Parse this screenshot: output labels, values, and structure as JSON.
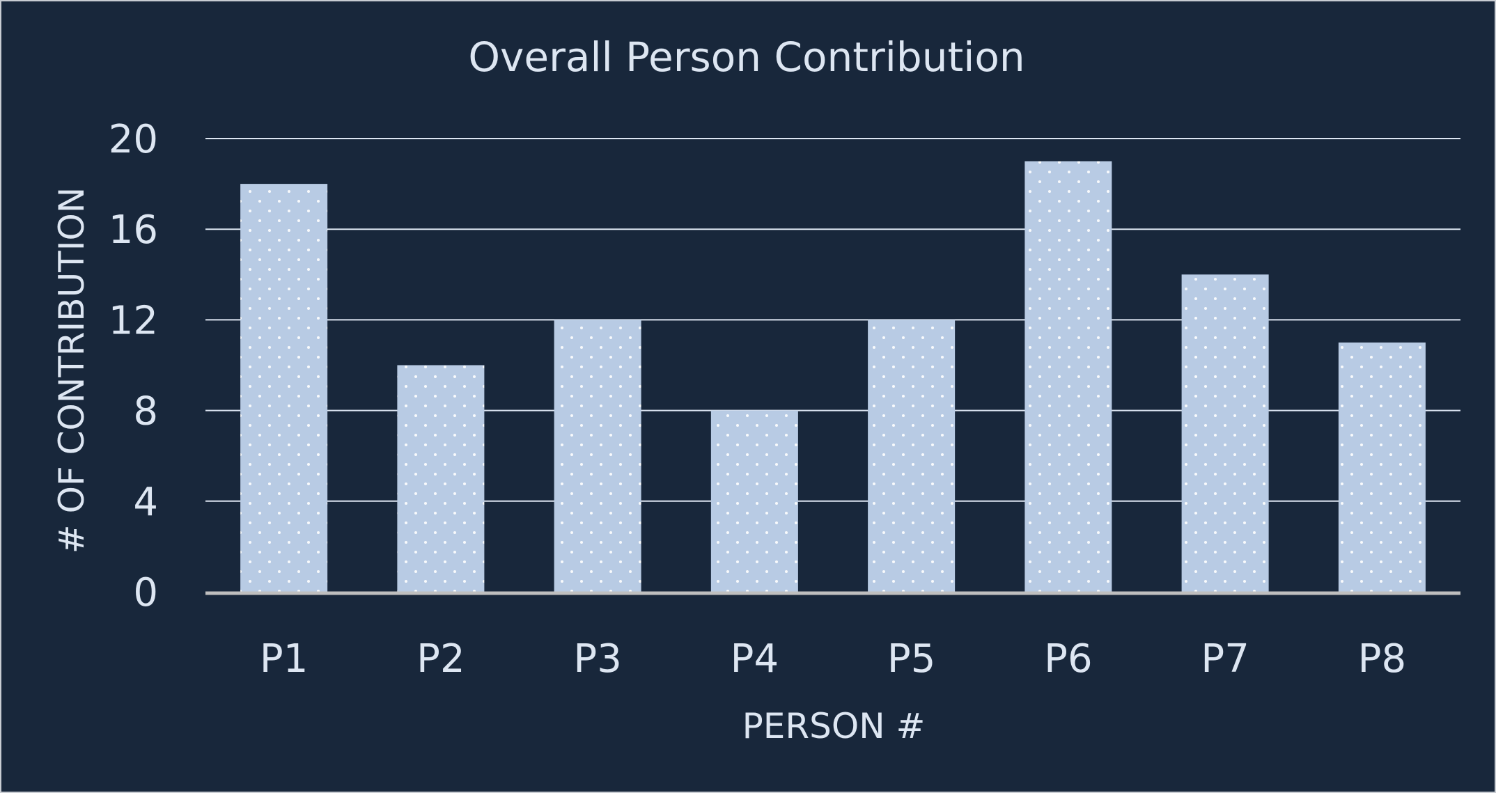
{
  "chart_data": {
    "type": "bar",
    "title": "Overall Person Contribution",
    "xlabel": "PERSON #",
    "ylabel": "# OF CONTRIBUTION",
    "categories": [
      "P1",
      "P2",
      "P3",
      "P4",
      "P5",
      "P6",
      "P7",
      "P8"
    ],
    "values": [
      18,
      10,
      12,
      8,
      12,
      19,
      14,
      11
    ],
    "ylim": [
      0,
      20
    ],
    "yticks": [
      0,
      4,
      8,
      12,
      16,
      20
    ],
    "grid": true,
    "legend": "none",
    "colors": {
      "background": "#18273b",
      "bar": "#b8cbe4",
      "bar_dots": "#ffffff",
      "gridline": "#dde6f2",
      "baseline": "#bfbfbf",
      "text": "#dde6f2"
    }
  }
}
